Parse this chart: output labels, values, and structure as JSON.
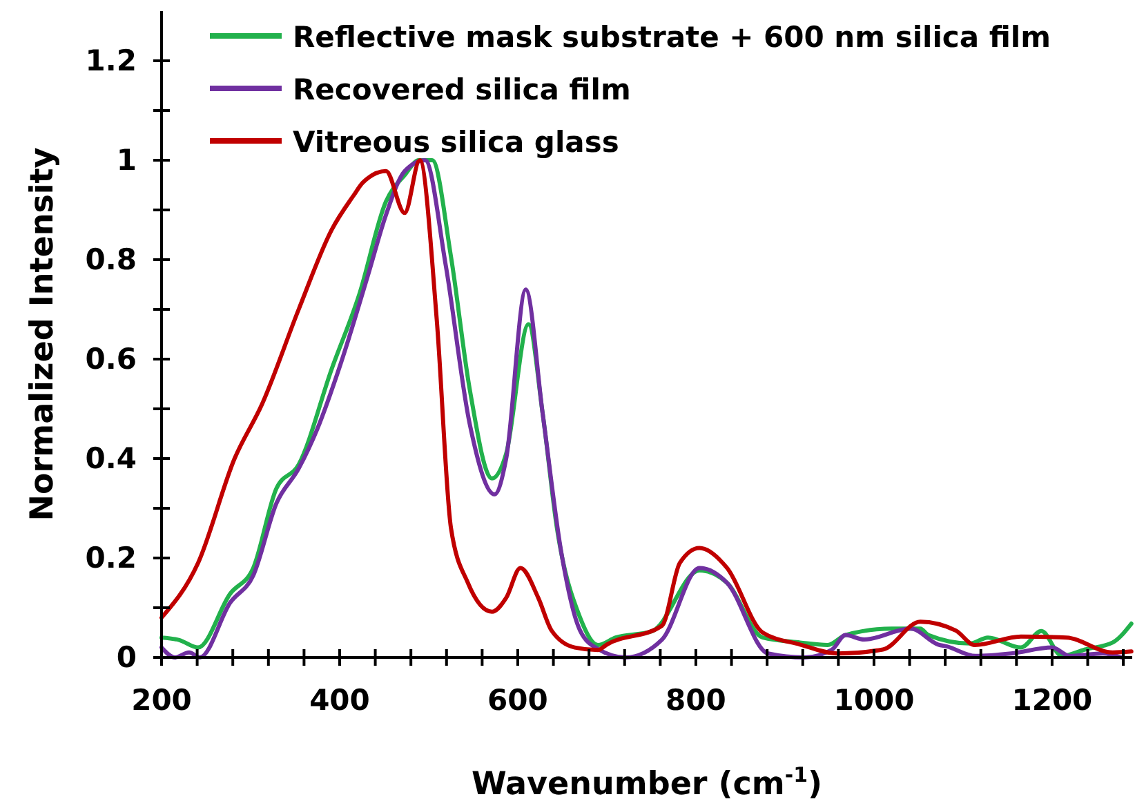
{
  "chart_data": {
    "type": "line",
    "xlabel": "Wavenumber (cm$^{-1}$)",
    "ylabel": "Normalized Intensity",
    "xlim": [
      200,
      1290
    ],
    "ylim": [
      0,
      1.3
    ],
    "xticks": [
      200,
      {
        "value": 240,
        "label": null
      },
      {
        "value": 280,
        "label": null
      },
      {
        "value": 320,
        "label": null
      },
      {
        "value": 360,
        "label": null
      },
      400,
      {
        "value": 440,
        "label": null
      },
      {
        "value": 480,
        "label": null
      },
      {
        "value": 520,
        "label": null
      },
      {
        "value": 560,
        "label": null
      },
      600,
      {
        "value": 640,
        "label": null
      },
      {
        "value": 680,
        "label": null
      },
      {
        "value": 720,
        "label": null
      },
      {
        "value": 760,
        "label": null
      },
      800,
      {
        "value": 840,
        "label": null
      },
      {
        "value": 880,
        "label": null
      },
      {
        "value": 920,
        "label": null
      },
      {
        "value": 960,
        "label": null
      },
      1000,
      {
        "value": 1040,
        "label": null
      },
      {
        "value": 1080,
        "label": null
      },
      {
        "value": 1120,
        "label": null
      },
      {
        "value": 1160,
        "label": null
      },
      1200,
      {
        "value": 1240,
        "label": null
      },
      {
        "value": 1280,
        "label": null
      }
    ],
    "yticks": [
      0,
      {
        "value": 0.1,
        "label": null
      },
      0.2,
      {
        "value": 0.3,
        "label": null
      },
      0.4,
      {
        "value": 0.5,
        "label": null
      },
      0.6,
      {
        "value": 0.7,
        "label": null
      },
      0.8,
      {
        "value": 0.9,
        "label": null
      },
      1,
      {
        "value": 1.1,
        "label": null
      },
      1.2
    ],
    "grid": false,
    "legend": "top",
    "marker": "none",
    "line_style": "solid",
    "series": [
      {
        "name": "Reflective mask substrate + 600 nm silica film",
        "color": "#22b14c",
        "x": [
          200,
          220,
          241,
          277,
          303,
          329,
          354,
          391,
          422,
          452,
          473,
          489,
          504,
          525,
          546,
          571,
          587,
          612,
          628,
          644,
          670,
          690,
          710,
          751,
          804,
          835,
          875,
          917,
          948,
          968,
          1020,
          1052,
          1061,
          1108,
          1128,
          1165,
          1188,
          1211,
          1237,
          1268,
          1289
        ],
        "values": [
          0.04,
          0.035,
          0.02,
          0.128,
          0.18,
          0.34,
          0.388,
          0.58,
          0.73,
          0.917,
          0.97,
          1.0,
          1.0,
          0.806,
          0.54,
          0.36,
          0.41,
          0.67,
          0.49,
          0.26,
          0.08,
          0.025,
          0.04,
          0.053,
          0.175,
          0.15,
          0.04,
          0.03,
          0.025,
          0.045,
          0.058,
          0.058,
          0.045,
          0.028,
          0.04,
          0.02,
          0.053,
          0.003,
          0.016,
          0.03,
          0.068
        ]
      },
      {
        "name": "Recovered silica film",
        "color": "#7030a0",
        "x": [
          200,
          215,
          231,
          243,
          277,
          303,
          329,
          354,
          375,
          401,
          432,
          452,
          473,
          496,
          519,
          546,
          574,
          587,
          609,
          628,
          649,
          670,
          690,
          721,
          762,
          804,
          835,
          881,
          922,
          953,
          968,
          989,
          1041,
          1072,
          1082,
          1114,
          1154,
          1200,
          1220,
          1257,
          1278
        ],
        "values": [
          0.02,
          0,
          0.01,
          0,
          0.11,
          0.165,
          0.31,
          0.38,
          0.46,
          0.59,
          0.77,
          0.89,
          0.978,
          1.0,
          0.79,
          0.47,
          0.328,
          0.4,
          0.74,
          0.49,
          0.21,
          0.054,
          0.017,
          0,
          0.036,
          0.18,
          0.15,
          0.008,
          0,
          0.016,
          0.045,
          0.036,
          0.058,
          0.026,
          0.022,
          0.003,
          0.008,
          0.02,
          0.003,
          0.008,
          0
        ]
      },
      {
        "name": "Vitreous silica glass",
        "color": "#c00000",
        "x": [
          200,
          241,
          282,
          313,
          354,
          391,
          416,
          426,
          452,
          473,
          490,
          509,
          525,
          544,
          571,
          587,
          603,
          623,
          638,
          664,
          690,
          700,
          762,
          782,
          804,
          835,
          875,
          917,
          959,
          1010,
          1052,
          1092,
          1113,
          1165,
          1216,
          1268,
          1289
        ],
        "values": [
          0.08,
          0.19,
          0.4,
          0.51,
          0.7,
          0.86,
          0.93,
          0.955,
          0.978,
          0.894,
          1.0,
          0.68,
          0.26,
          0.15,
          0.092,
          0.12,
          0.18,
          0.12,
          0.054,
          0.02,
          0.015,
          0.026,
          0.064,
          0.19,
          0.22,
          0.18,
          0.05,
          0.026,
          0.008,
          0.016,
          0.072,
          0.054,
          0.025,
          0.042,
          0.04,
          0.01,
          0.012
        ]
      }
    ]
  }
}
